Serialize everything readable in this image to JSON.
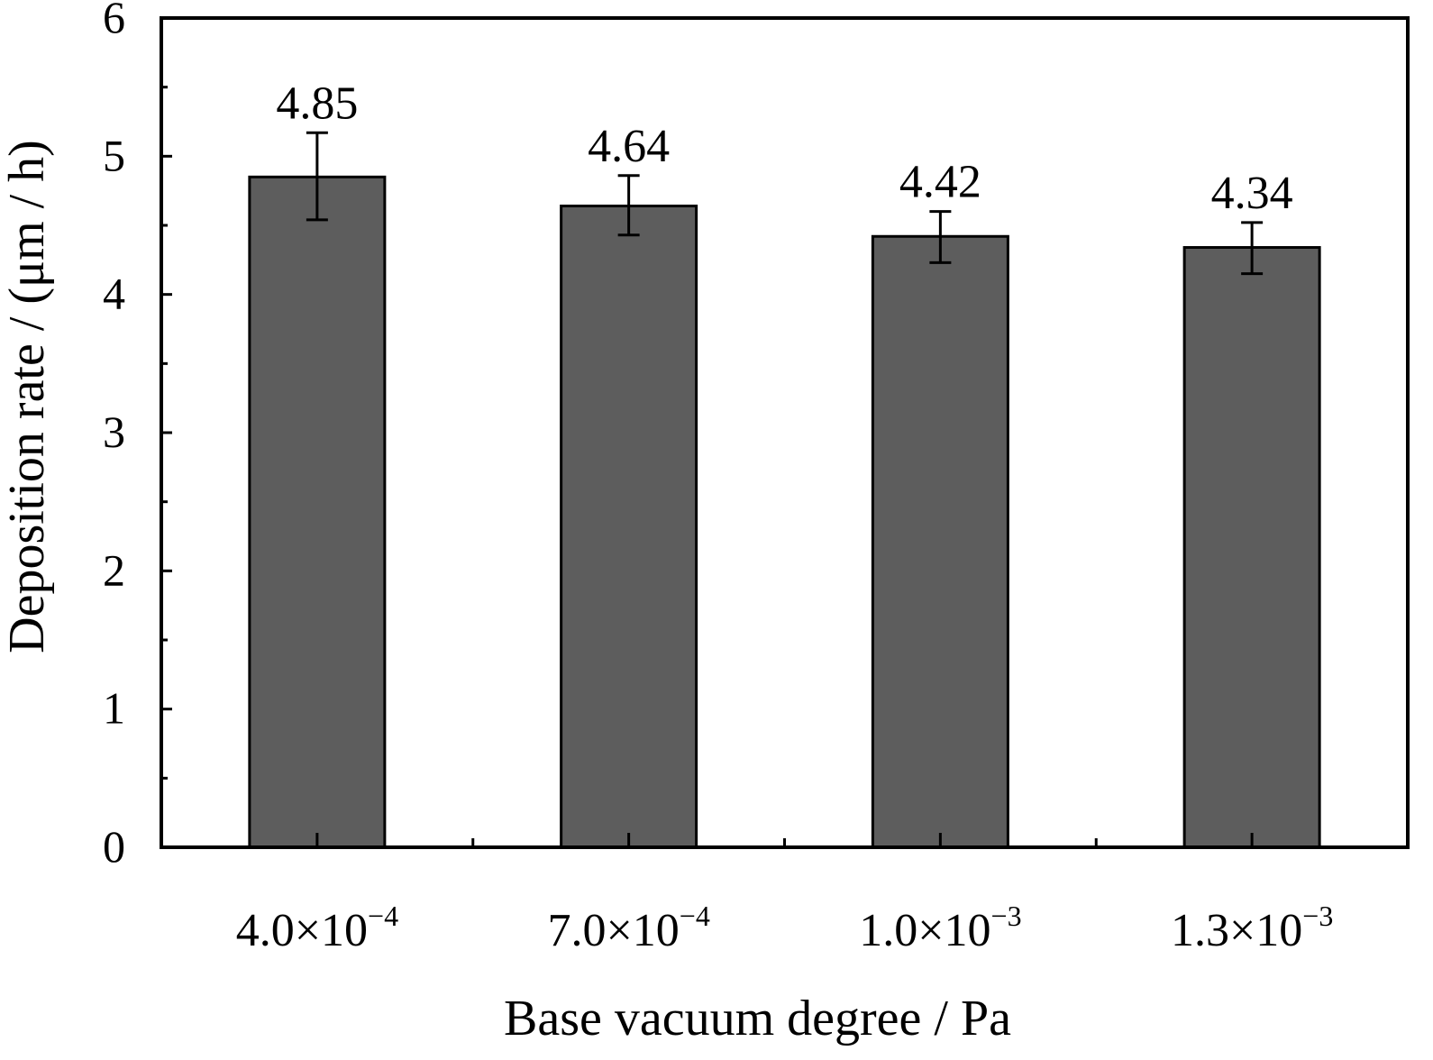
{
  "chart_data": {
    "type": "bar",
    "title": "",
    "xlabel": "Base vacuum degree / Pa",
    "ylabel": "Deposition rate / (μm / h)",
    "ylim": [
      0,
      6
    ],
    "yticks": [
      "0",
      "1",
      "2",
      "3",
      "4",
      "5",
      "6"
    ],
    "grid": false,
    "legend": "none",
    "categories": [
      {
        "mantissa": "4.0×10",
        "exponent": "−4"
      },
      {
        "mantissa": "7.0×10",
        "exponent": "−4"
      },
      {
        "mantissa": "1.0×10",
        "exponent": "−3"
      },
      {
        "mantissa": "1.3×10",
        "exponent": "−3"
      }
    ],
    "values": [
      4.85,
      4.64,
      4.42,
      4.34
    ],
    "value_labels": [
      "4.85",
      "4.64",
      "4.42",
      "4.34"
    ],
    "error_low": [
      4.54,
      4.43,
      4.23,
      4.15
    ],
    "error_high": [
      5.17,
      4.86,
      4.6,
      4.52
    ],
    "bar_color": "#5d5d5d"
  }
}
